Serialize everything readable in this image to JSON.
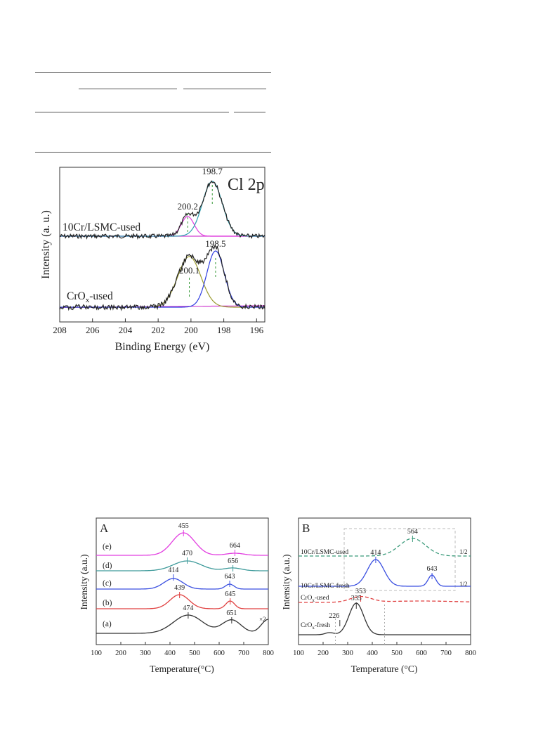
{
  "chart_data": [
    {
      "type": "line",
      "panel": "Cl 2p",
      "title": "Cl 2p",
      "xlabel": "Binding Energy (eV)",
      "ylabel": "Intensity (a. u.)",
      "xlim": [
        208,
        195.5
      ],
      "x_ticks": [
        "208",
        "206",
        "204",
        "202",
        "200",
        "198",
        "196"
      ],
      "samples": [
        {
          "label": "10Cr/LSMC-used",
          "peaks": [
            {
              "label": "200.2",
              "x": 200.2
            },
            {
              "label": "198.7",
              "x": 198.7
            }
          ]
        },
        {
          "label_main": "CrO",
          "label_sub": "x",
          "label_tail": "-used",
          "peaks": [
            {
              "label": "200.1",
              "x": 200.1
            },
            {
              "label": "198.5",
              "x": 198.5
            }
          ]
        }
      ],
      "colors": {
        "raw": "#222222",
        "fit_a": "#e23de0",
        "fit_b": "#2d9fb0",
        "fit_c": "#9a9a2e",
        "fit_d": "#2f3ee0",
        "baseline": "#d040d0"
      }
    },
    {
      "type": "line",
      "panel": "A",
      "title": "A",
      "xlabel": "Temperature(°C)",
      "ylabel": "Intensity (a.u.)",
      "xlim": [
        100,
        800
      ],
      "x_ticks": [
        "100",
        "200",
        "300",
        "400",
        "500",
        "600",
        "700",
        "800"
      ],
      "series": [
        {
          "name": "(e)",
          "color": "#e23de0",
          "peaks": [
            "455",
            "664"
          ]
        },
        {
          "name": "(d)",
          "color": "#3d9a9a",
          "peaks": [
            "470",
            "656"
          ]
        },
        {
          "name": "(c)",
          "color": "#3a4fe0",
          "peaks": [
            "414",
            "643"
          ]
        },
        {
          "name": "(b)",
          "color": "#e04040",
          "peaks": [
            "439",
            "645"
          ]
        },
        {
          "name": "(a)",
          "color": "#333333",
          "peaks": [
            "474",
            "651"
          ],
          "note": "×2"
        }
      ]
    },
    {
      "type": "line",
      "panel": "B",
      "title": "B",
      "xlabel": "Temperature (°C)",
      "ylabel": "Intensity (a.u.)",
      "xlim": [
        100,
        800
      ],
      "x_ticks": [
        "100",
        "200",
        "300",
        "400",
        "500",
        "600",
        "700",
        "800"
      ],
      "series": [
        {
          "name": "10Cr/LSMC-used",
          "color": "#3a9a7a",
          "peaks": [
            "564"
          ],
          "note": "1/2"
        },
        {
          "name": "10Cr/LSMC-fresh",
          "color": "#3a4fe0",
          "peaks": [
            "414",
            "643"
          ],
          "note": "1/2"
        },
        {
          "name_main": "CrO",
          "name_sub": "x",
          "name_tail": "-used",
          "color": "#e04040",
          "peaks": [
            "353"
          ]
        },
        {
          "name_main": "CrO",
          "name_sub": "x",
          "name_tail": "-fresh",
          "color": "#333333",
          "peaks": [
            "226",
            "335"
          ]
        }
      ]
    }
  ]
}
